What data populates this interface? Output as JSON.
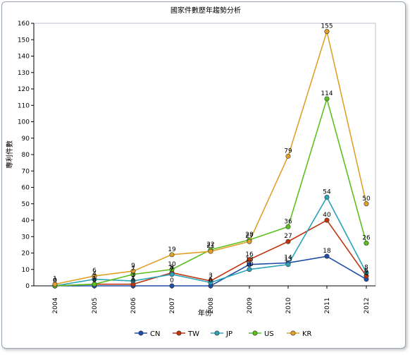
{
  "chart_data": {
    "type": "line",
    "title": "國家件數歷年趨勢分析",
    "xlabel": "年份",
    "ylabel": "專利件數",
    "categories": [
      "2004",
      "2005",
      "2006",
      "2007",
      "2008",
      "2009",
      "2010",
      "2011",
      "2012"
    ],
    "ylim": [
      0,
      160
    ],
    "yticks": [
      0,
      10,
      20,
      30,
      40,
      50,
      60,
      70,
      80,
      90,
      100,
      110,
      120,
      130,
      140,
      150,
      160
    ],
    "grid": false,
    "legend_position": "bottom",
    "series": [
      {
        "name": "CN",
        "color": "#1f4ea8",
        "values": [
          0,
          0,
          0,
          0,
          0,
          13,
          14,
          18,
          4
        ]
      },
      {
        "name": "TW",
        "color": "#c0340c",
        "values": [
          0,
          1,
          1,
          8,
          3,
          16,
          27,
          40,
          6
        ]
      },
      {
        "name": "JP",
        "color": "#2aa3b8",
        "values": [
          0,
          4,
          3,
          7,
          2,
          10,
          13,
          54,
          8
        ]
      },
      {
        "name": "US",
        "color": "#5bbf1e",
        "values": [
          0,
          1,
          7,
          10,
          22,
          28,
          36,
          114,
          26
        ]
      },
      {
        "name": "KR",
        "color": "#e0a02a",
        "values": [
          1,
          6,
          9,
          19,
          21,
          27,
          79,
          155,
          50
        ]
      }
    ]
  }
}
